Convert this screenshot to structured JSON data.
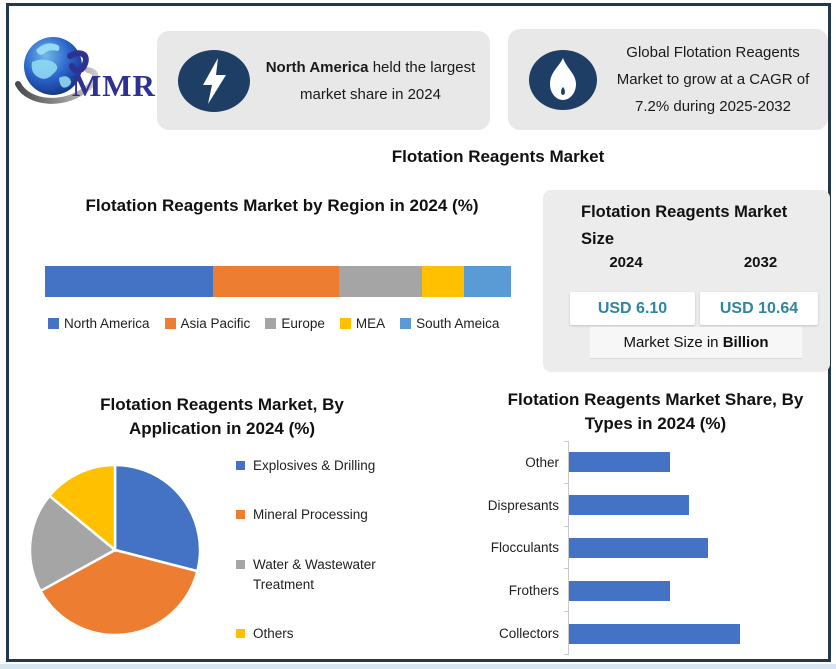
{
  "logo": {
    "text": "MMR"
  },
  "header": {
    "callout1": {
      "bold": "North America",
      "rest": " held the largest market share in 2024"
    },
    "callout2": {
      "text": "Global Flotation Reagents Market to grow at a CAGR of 7.2% during 2025-2032"
    }
  },
  "main_title": "Flotation Reagents Market",
  "market_size": {
    "title": "Flotation Reagents Market Size",
    "year_left": "2024",
    "year_right": "2032",
    "value_left": "USD 6.10",
    "value_right": "USD 10.64",
    "footnote_prefix": "Market Size in ",
    "footnote_bold": "Billion",
    "value_color": "#2E86A0"
  },
  "chart_data": [
    {
      "id": "region",
      "type": "bar",
      "subtype": "stacked-horizontal",
      "title": "Flotation Reagents Market by Region in 2024 (%)",
      "legend_position": "bottom",
      "segments": [
        {
          "label": "North America",
          "value": 36,
          "color": "#4472C4"
        },
        {
          "label": "Asia Pacific",
          "value": 27,
          "color": "#ED7D31"
        },
        {
          "label": "Europe",
          "value": 18,
          "color": "#A5A5A5"
        },
        {
          "label": "MEA",
          "value": 9,
          "color": "#FFC000"
        },
        {
          "label": "South Ameica",
          "value": 10,
          "color": "#5B9BD5"
        }
      ]
    },
    {
      "id": "application",
      "type": "pie",
      "title": "Flotation Reagents Market, By Application in 2024 (%)",
      "legend_position": "right",
      "slices": [
        {
          "label": "Explosives & Drilling",
          "value": 29,
          "color": "#4472C4"
        },
        {
          "label": "Mineral Processing",
          "value": 38,
          "color": "#ED7D31"
        },
        {
          "label": "Water & Wastewater Treatment",
          "value": 19,
          "color": "#A5A5A5"
        },
        {
          "label": "Others",
          "value": 14,
          "color": "#FFC000"
        }
      ]
    },
    {
      "id": "types",
      "type": "bar",
      "subtype": "horizontal",
      "title": "Flotation Reagents Market Share, By Types in 2024 (%)",
      "categories": [
        "Other",
        "Dispresants",
        "Flocculants",
        "Frothers",
        "Collectors"
      ],
      "values": [
        16,
        19,
        22,
        16,
        27
      ],
      "bar_color": "#4472C4",
      "xlim": [
        0,
        30
      ],
      "grid": false
    }
  ]
}
